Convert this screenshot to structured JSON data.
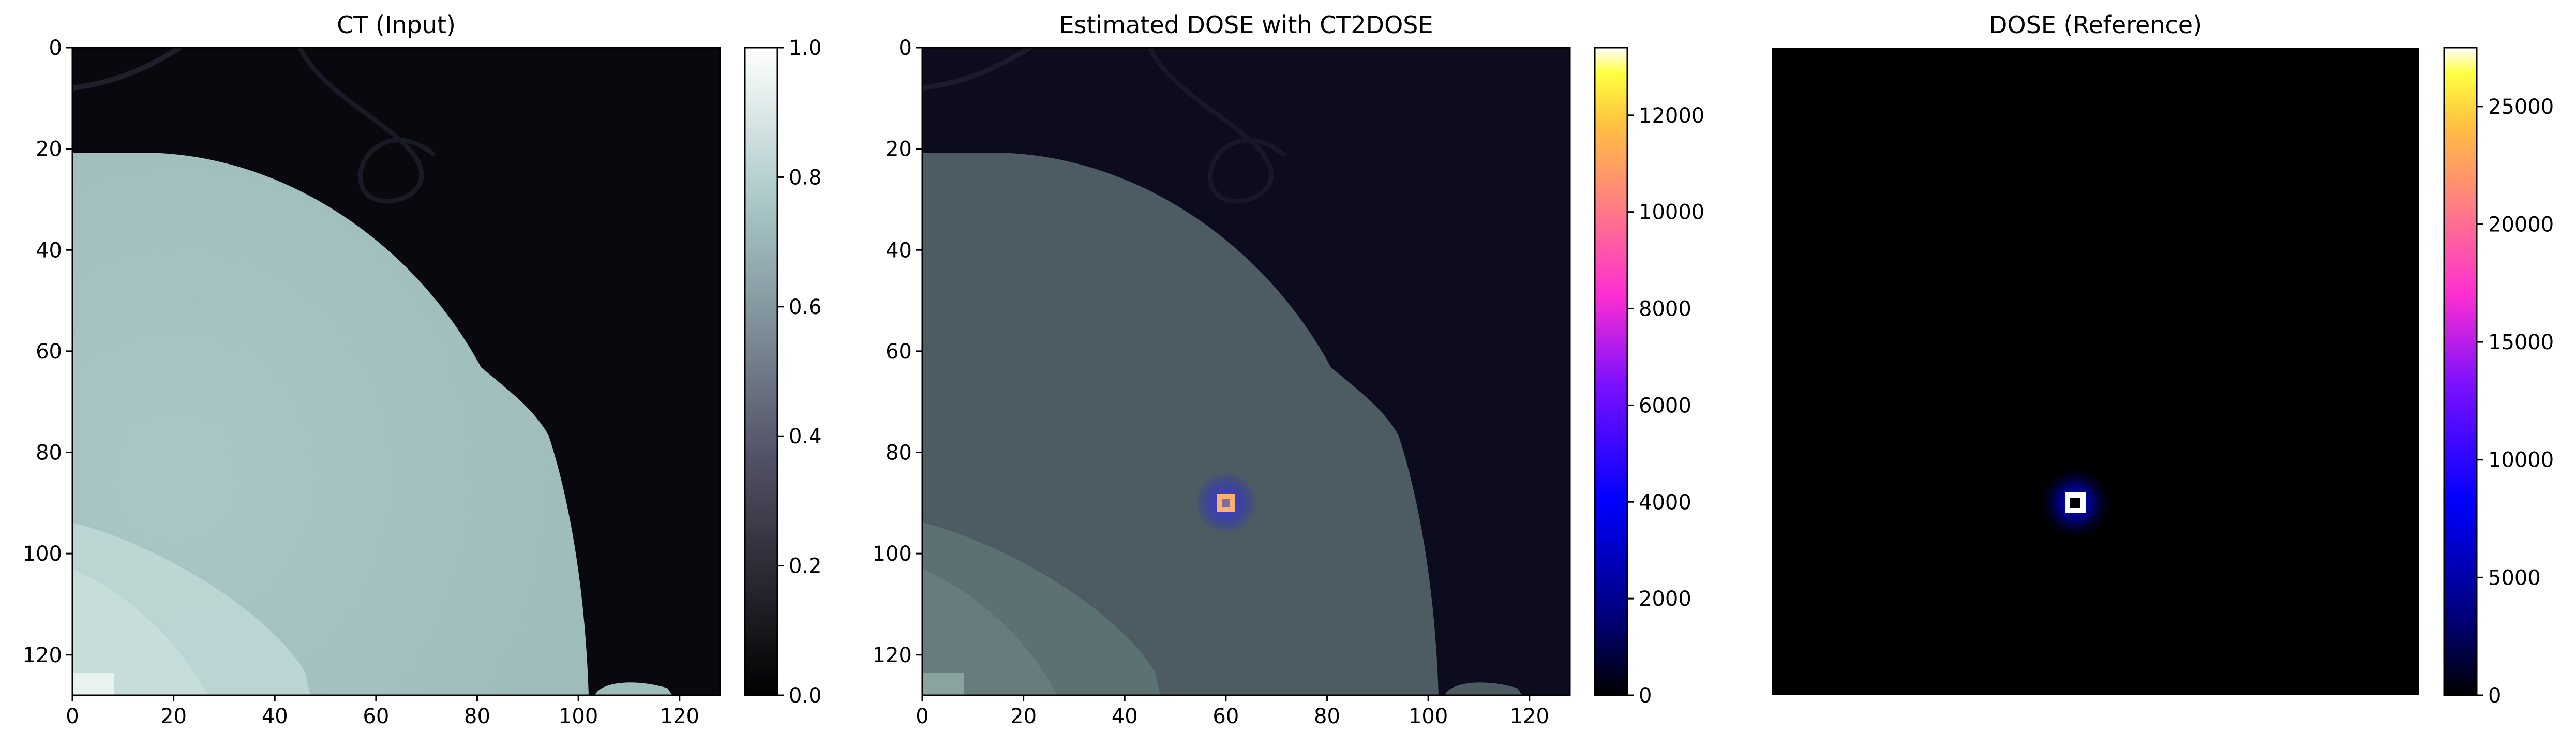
{
  "chart_data": [
    {
      "type": "heatmap",
      "title": "CT (Input)",
      "xlabel": "",
      "ylabel": "",
      "colormap": "bone",
      "xlim": [
        0,
        128
      ],
      "ylim": [
        128,
        0
      ],
      "x_ticks": [
        0,
        20,
        40,
        60,
        80,
        100,
        120
      ],
      "y_ticks": [
        0,
        20,
        40,
        60,
        80,
        100,
        120
      ],
      "colorbar": {
        "range": [
          0,
          1.0
        ],
        "ticks": [
          "0.0",
          "0.2",
          "0.4",
          "0.6",
          "0.8",
          "1.0"
        ]
      },
      "description_values": {
        "background": 0.05,
        "body": 0.72,
        "bone_region": 0.8
      }
    },
    {
      "type": "heatmap",
      "title": "Estimated DOSE with CT2DOSE",
      "xlabel": "",
      "ylabel": "",
      "colormap": "gnuplot2 overlay on CT",
      "xlim": [
        0,
        128
      ],
      "ylim": [
        128,
        0
      ],
      "x_ticks": [
        0,
        20,
        40,
        60,
        80,
        100,
        120
      ],
      "y_ticks": [
        0,
        20,
        40,
        60,
        80,
        100,
        120
      ],
      "colorbar": {
        "range": [
          0,
          13400
        ],
        "ticks": [
          "0",
          "2000",
          "4000",
          "6000",
          "8000",
          "10000",
          "12000"
        ]
      },
      "hotspot": {
        "x": 60,
        "y": 90,
        "peak": 13400
      }
    },
    {
      "type": "heatmap",
      "title": "DOSE (Reference)",
      "xlabel": "",
      "ylabel": "",
      "colormap": "gnuplot2",
      "axes_visible": false,
      "colorbar": {
        "range": [
          0,
          27500
        ],
        "ticks": [
          "0",
          "5000",
          "10000",
          "15000",
          "20000",
          "25000"
        ]
      },
      "hotspot": {
        "x": 60,
        "y": 90,
        "peak": 27500
      }
    }
  ],
  "colors": {
    "background": "#ffffff",
    "ct_dark": "#08080e",
    "ct_body": "#a8c4c4",
    "dose_black": "#000000",
    "dose_blue": "#0000ff",
    "dose_magenta": "#ff33cc",
    "dose_orange": "#ffa040",
    "dose_yellow": "#ffff00"
  }
}
